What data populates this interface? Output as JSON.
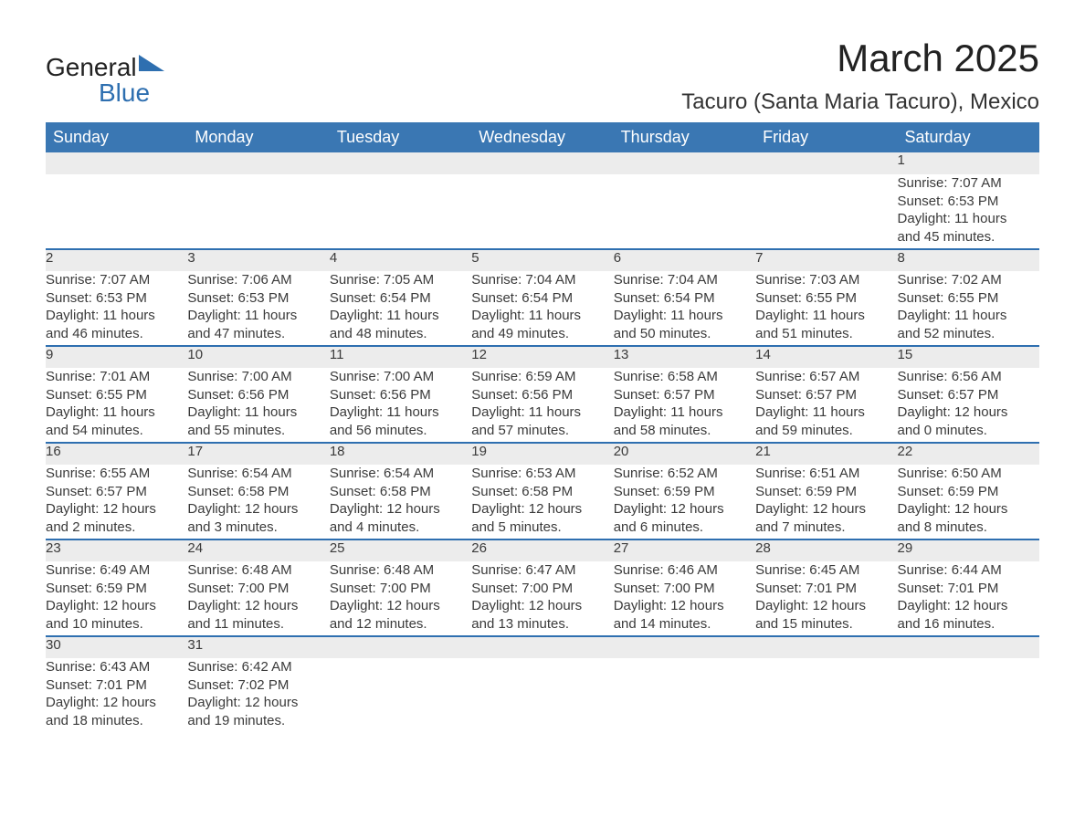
{
  "logo": {
    "text_general": "General",
    "text_blue": "Blue",
    "triangle_color": "#2e6fb0"
  },
  "title": "March 2025",
  "location": "Tacuro (Santa Maria Tacuro), Mexico",
  "colors": {
    "header_bg": "#3a77b3",
    "header_text": "#ffffff",
    "daynum_bg": "#ececec",
    "row_border": "#2e6fb0",
    "text": "#3a3a3a"
  },
  "days_of_week": [
    "Sunday",
    "Monday",
    "Tuesday",
    "Wednesday",
    "Thursday",
    "Friday",
    "Saturday"
  ],
  "weeks": [
    [
      null,
      null,
      null,
      null,
      null,
      null,
      {
        "n": "1",
        "sunrise": "Sunrise: 7:07 AM",
        "sunset": "Sunset: 6:53 PM",
        "d1": "Daylight: 11 hours",
        "d2": "and 45 minutes."
      }
    ],
    [
      {
        "n": "2",
        "sunrise": "Sunrise: 7:07 AM",
        "sunset": "Sunset: 6:53 PM",
        "d1": "Daylight: 11 hours",
        "d2": "and 46 minutes."
      },
      {
        "n": "3",
        "sunrise": "Sunrise: 7:06 AM",
        "sunset": "Sunset: 6:53 PM",
        "d1": "Daylight: 11 hours",
        "d2": "and 47 minutes."
      },
      {
        "n": "4",
        "sunrise": "Sunrise: 7:05 AM",
        "sunset": "Sunset: 6:54 PM",
        "d1": "Daylight: 11 hours",
        "d2": "and 48 minutes."
      },
      {
        "n": "5",
        "sunrise": "Sunrise: 7:04 AM",
        "sunset": "Sunset: 6:54 PM",
        "d1": "Daylight: 11 hours",
        "d2": "and 49 minutes."
      },
      {
        "n": "6",
        "sunrise": "Sunrise: 7:04 AM",
        "sunset": "Sunset: 6:54 PM",
        "d1": "Daylight: 11 hours",
        "d2": "and 50 minutes."
      },
      {
        "n": "7",
        "sunrise": "Sunrise: 7:03 AM",
        "sunset": "Sunset: 6:55 PM",
        "d1": "Daylight: 11 hours",
        "d2": "and 51 minutes."
      },
      {
        "n": "8",
        "sunrise": "Sunrise: 7:02 AM",
        "sunset": "Sunset: 6:55 PM",
        "d1": "Daylight: 11 hours",
        "d2": "and 52 minutes."
      }
    ],
    [
      {
        "n": "9",
        "sunrise": "Sunrise: 7:01 AM",
        "sunset": "Sunset: 6:55 PM",
        "d1": "Daylight: 11 hours",
        "d2": "and 54 minutes."
      },
      {
        "n": "10",
        "sunrise": "Sunrise: 7:00 AM",
        "sunset": "Sunset: 6:56 PM",
        "d1": "Daylight: 11 hours",
        "d2": "and 55 minutes."
      },
      {
        "n": "11",
        "sunrise": "Sunrise: 7:00 AM",
        "sunset": "Sunset: 6:56 PM",
        "d1": "Daylight: 11 hours",
        "d2": "and 56 minutes."
      },
      {
        "n": "12",
        "sunrise": "Sunrise: 6:59 AM",
        "sunset": "Sunset: 6:56 PM",
        "d1": "Daylight: 11 hours",
        "d2": "and 57 minutes."
      },
      {
        "n": "13",
        "sunrise": "Sunrise: 6:58 AM",
        "sunset": "Sunset: 6:57 PM",
        "d1": "Daylight: 11 hours",
        "d2": "and 58 minutes."
      },
      {
        "n": "14",
        "sunrise": "Sunrise: 6:57 AM",
        "sunset": "Sunset: 6:57 PM",
        "d1": "Daylight: 11 hours",
        "d2": "and 59 minutes."
      },
      {
        "n": "15",
        "sunrise": "Sunrise: 6:56 AM",
        "sunset": "Sunset: 6:57 PM",
        "d1": "Daylight: 12 hours",
        "d2": "and 0 minutes."
      }
    ],
    [
      {
        "n": "16",
        "sunrise": "Sunrise: 6:55 AM",
        "sunset": "Sunset: 6:57 PM",
        "d1": "Daylight: 12 hours",
        "d2": "and 2 minutes."
      },
      {
        "n": "17",
        "sunrise": "Sunrise: 6:54 AM",
        "sunset": "Sunset: 6:58 PM",
        "d1": "Daylight: 12 hours",
        "d2": "and 3 minutes."
      },
      {
        "n": "18",
        "sunrise": "Sunrise: 6:54 AM",
        "sunset": "Sunset: 6:58 PM",
        "d1": "Daylight: 12 hours",
        "d2": "and 4 minutes."
      },
      {
        "n": "19",
        "sunrise": "Sunrise: 6:53 AM",
        "sunset": "Sunset: 6:58 PM",
        "d1": "Daylight: 12 hours",
        "d2": "and 5 minutes."
      },
      {
        "n": "20",
        "sunrise": "Sunrise: 6:52 AM",
        "sunset": "Sunset: 6:59 PM",
        "d1": "Daylight: 12 hours",
        "d2": "and 6 minutes."
      },
      {
        "n": "21",
        "sunrise": "Sunrise: 6:51 AM",
        "sunset": "Sunset: 6:59 PM",
        "d1": "Daylight: 12 hours",
        "d2": "and 7 minutes."
      },
      {
        "n": "22",
        "sunrise": "Sunrise: 6:50 AM",
        "sunset": "Sunset: 6:59 PM",
        "d1": "Daylight: 12 hours",
        "d2": "and 8 minutes."
      }
    ],
    [
      {
        "n": "23",
        "sunrise": "Sunrise: 6:49 AM",
        "sunset": "Sunset: 6:59 PM",
        "d1": "Daylight: 12 hours",
        "d2": "and 10 minutes."
      },
      {
        "n": "24",
        "sunrise": "Sunrise: 6:48 AM",
        "sunset": "Sunset: 7:00 PM",
        "d1": "Daylight: 12 hours",
        "d2": "and 11 minutes."
      },
      {
        "n": "25",
        "sunrise": "Sunrise: 6:48 AM",
        "sunset": "Sunset: 7:00 PM",
        "d1": "Daylight: 12 hours",
        "d2": "and 12 minutes."
      },
      {
        "n": "26",
        "sunrise": "Sunrise: 6:47 AM",
        "sunset": "Sunset: 7:00 PM",
        "d1": "Daylight: 12 hours",
        "d2": "and 13 minutes."
      },
      {
        "n": "27",
        "sunrise": "Sunrise: 6:46 AM",
        "sunset": "Sunset: 7:00 PM",
        "d1": "Daylight: 12 hours",
        "d2": "and 14 minutes."
      },
      {
        "n": "28",
        "sunrise": "Sunrise: 6:45 AM",
        "sunset": "Sunset: 7:01 PM",
        "d1": "Daylight: 12 hours",
        "d2": "and 15 minutes."
      },
      {
        "n": "29",
        "sunrise": "Sunrise: 6:44 AM",
        "sunset": "Sunset: 7:01 PM",
        "d1": "Daylight: 12 hours",
        "d2": "and 16 minutes."
      }
    ],
    [
      {
        "n": "30",
        "sunrise": "Sunrise: 6:43 AM",
        "sunset": "Sunset: 7:01 PM",
        "d1": "Daylight: 12 hours",
        "d2": "and 18 minutes."
      },
      {
        "n": "31",
        "sunrise": "Sunrise: 6:42 AM",
        "sunset": "Sunset: 7:02 PM",
        "d1": "Daylight: 12 hours",
        "d2": "and 19 minutes."
      },
      null,
      null,
      null,
      null,
      null
    ]
  ]
}
